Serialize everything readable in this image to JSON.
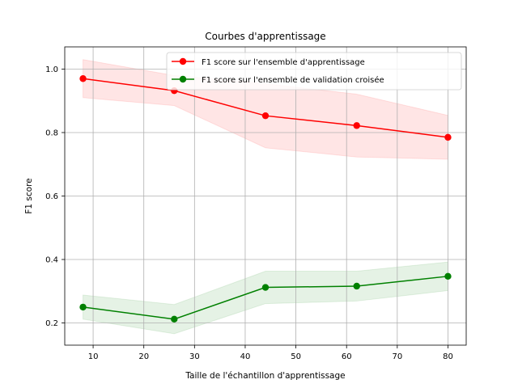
{
  "chart_data": {
    "type": "line",
    "title": "Courbes d'apprentissage",
    "xlabel": "Taille de l'échantillon d'apprentissage",
    "ylabel": "F1 score",
    "xlim": [
      4.4,
      83.6
    ],
    "ylim": [
      0.13,
      1.07
    ],
    "xticks": [
      10,
      20,
      30,
      40,
      50,
      60,
      70,
      80
    ],
    "yticks": [
      0.2,
      0.4,
      0.6,
      0.8,
      1.0
    ],
    "x_tick_labels": [
      "10",
      "20",
      "30",
      "40",
      "50",
      "60",
      "70",
      "80"
    ],
    "y_tick_labels": [
      "0.2",
      "0.4",
      "0.6",
      "0.8",
      "1.0"
    ],
    "grid": true,
    "legend_position": "top-right",
    "x": [
      8,
      26,
      44,
      62,
      80
    ],
    "series": [
      {
        "name": "F1 score sur l'ensemble d'apprentissage",
        "color": "#ff0000",
        "values": [
          0.97,
          0.932,
          0.853,
          0.822,
          0.785
        ],
        "band_lower": [
          0.91,
          0.885,
          0.752,
          0.723,
          0.716
        ],
        "band_upper": [
          1.03,
          0.98,
          0.954,
          0.921,
          0.854
        ]
      },
      {
        "name": "F1 score sur l'ensemble de validation croisée",
        "color": "#008000",
        "values": [
          0.25,
          0.212,
          0.312,
          0.316,
          0.347
        ],
        "band_lower": [
          0.212,
          0.166,
          0.261,
          0.269,
          0.302
        ],
        "band_upper": [
          0.288,
          0.258,
          0.363,
          0.363,
          0.392
        ]
      }
    ]
  }
}
